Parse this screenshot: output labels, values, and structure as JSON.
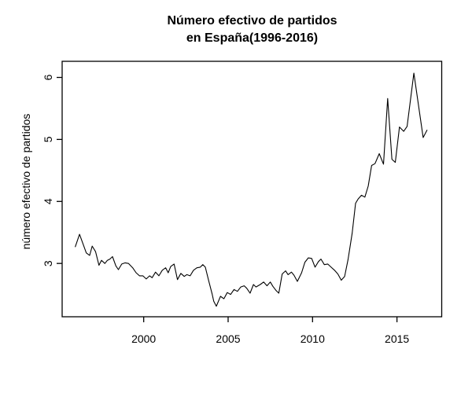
{
  "chart_data": {
    "type": "line",
    "title_lines": [
      "Número efectivo de partidos",
      "en España(1996-2016)"
    ],
    "ylabel": "número efectivo de partidos",
    "xlabel": "",
    "x_ticks": [
      "2000",
      "2005",
      "2010",
      "2015"
    ],
    "x_tick_values": [
      2000,
      2005,
      2010,
      2015
    ],
    "y_ticks": [
      "3",
      "4",
      "5",
      "6"
    ],
    "y_tick_values": [
      3,
      4,
      5,
      6
    ],
    "xlim": [
      1995.17,
      2017.65
    ],
    "ylim": [
      2.14,
      6.26
    ],
    "grid": false,
    "legend": "none",
    "background": "#ffffff",
    "line_color": "#000000",
    "axis_color": "#000000",
    "series": [
      {
        "name": "número efectivo de partidos",
        "x": [
          1995.95,
          1996.2,
          1996.4,
          1996.6,
          1996.8,
          1996.95,
          1997.15,
          1997.35,
          1997.5,
          1997.7,
          1997.85,
          1998.0,
          1998.15,
          1998.35,
          1998.5,
          1998.7,
          1998.9,
          1999.1,
          1999.35,
          1999.55,
          1999.75,
          1999.95,
          2000.15,
          2000.35,
          2000.5,
          2000.7,
          2000.9,
          2001.1,
          2001.3,
          2001.45,
          2001.6,
          2001.8,
          2002.0,
          2002.2,
          2002.4,
          2002.55,
          2002.75,
          2002.95,
          2003.15,
          2003.35,
          2003.5,
          2003.65,
          2003.85,
          2004.05,
          2004.15,
          2004.3,
          2004.55,
          2004.75,
          2004.95,
          2005.15,
          2005.35,
          2005.55,
          2005.75,
          2005.95,
          2006.1,
          2006.3,
          2006.5,
          2006.65,
          2006.9,
          2007.1,
          2007.3,
          2007.5,
          2007.65,
          2007.85,
          2008.0,
          2008.2,
          2008.4,
          2008.55,
          2008.75,
          2008.9,
          2009.1,
          2009.35,
          2009.55,
          2009.75,
          2009.95,
          2010.15,
          2010.35,
          2010.5,
          2010.7,
          2010.9,
          2011.1,
          2011.3,
          2011.5,
          2011.7,
          2011.9,
          2012.1,
          2012.35,
          2012.55,
          2012.7,
          2012.9,
          2013.1,
          2013.3,
          2013.5,
          2013.7,
          2013.95,
          2014.2,
          2014.45,
          2014.7,
          2014.9,
          2015.15,
          2015.4,
          2015.6,
          2016.0,
          2016.55,
          2016.78
        ],
        "y": [
          3.27,
          3.47,
          3.32,
          3.17,
          3.13,
          3.28,
          3.19,
          2.97,
          3.05,
          3.0,
          3.05,
          3.07,
          3.11,
          2.96,
          2.9,
          2.99,
          3.01,
          3.0,
          2.93,
          2.85,
          2.8,
          2.8,
          2.75,
          2.8,
          2.77,
          2.86,
          2.8,
          2.89,
          2.93,
          2.85,
          2.95,
          2.99,
          2.74,
          2.84,
          2.79,
          2.82,
          2.8,
          2.89,
          2.93,
          2.94,
          2.98,
          2.94,
          2.72,
          2.51,
          2.39,
          2.31,
          2.47,
          2.43,
          2.53,
          2.5,
          2.58,
          2.55,
          2.62,
          2.64,
          2.6,
          2.52,
          2.66,
          2.62,
          2.66,
          2.7,
          2.64,
          2.7,
          2.63,
          2.56,
          2.52,
          2.83,
          2.88,
          2.82,
          2.86,
          2.81,
          2.71,
          2.85,
          3.02,
          3.09,
          3.08,
          2.94,
          3.03,
          3.07,
          2.98,
          2.99,
          2.94,
          2.89,
          2.83,
          2.73,
          2.79,
          3.06,
          3.49,
          3.97,
          4.04,
          4.1,
          4.07,
          4.25,
          4.58,
          4.61,
          4.77,
          4.6,
          5.66,
          4.68,
          4.63,
          5.2,
          5.13,
          5.21,
          6.07,
          5.03,
          5.15
        ]
      }
    ]
  }
}
